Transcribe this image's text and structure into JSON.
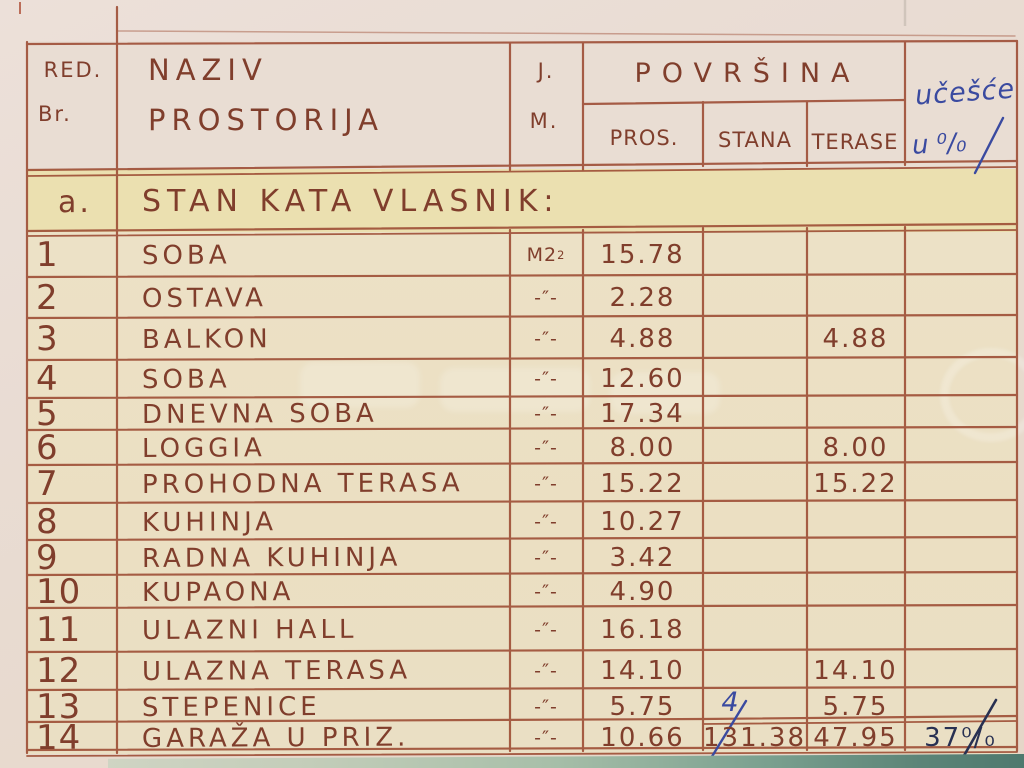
{
  "header": {
    "col1_line1": "RED.",
    "col1_line2": "Br.",
    "col2_line1": "NAZIV",
    "col2_line2": "PROSTORIJA",
    "col3_line1": "J.",
    "col3_line2": "M.",
    "col_group": "POVRŠINA",
    "sub_pros": "PROS.",
    "sub_stana": "STANA",
    "sub_terase": "TERASE",
    "col_share_line1": "učešće",
    "col_share_line2": "u ⁰/₀"
  },
  "section_row": {
    "label": "a.",
    "title": "STAN KATA VLASNIK:"
  },
  "rows": [
    {
      "num": "1",
      "name": "SOBA",
      "jm": "M2",
      "jm_sup": "2",
      "pros": "15.78",
      "stana": "",
      "terase": "",
      "udio": ""
    },
    {
      "num": "2",
      "name": "OSTAVA",
      "jm": "-″-",
      "pros": "2.28",
      "stana": "",
      "terase": "",
      "udio": ""
    },
    {
      "num": "3",
      "name": "BALKON",
      "jm": "-″-",
      "pros": "4.88",
      "stana": "",
      "terase": "4.88",
      "udio": ""
    },
    {
      "num": "4",
      "name": "SOBA",
      "jm": "-″-",
      "pros": "12.60",
      "stana": "",
      "terase": "",
      "udio": ""
    },
    {
      "num": "5",
      "name": "DNEVNA SOBA",
      "jm": "-″-",
      "pros": "17.34",
      "stana": "",
      "terase": "",
      "udio": ""
    },
    {
      "num": "6",
      "name": "LOGGIA",
      "jm": "-″-",
      "pros": "8.00",
      "stana": "",
      "terase": "8.00",
      "udio": ""
    },
    {
      "num": "7",
      "name": "PROHODNA TERASA",
      "jm": "-″-",
      "pros": "15.22",
      "stana": "",
      "terase": "15.22",
      "udio": ""
    },
    {
      "num": "8",
      "name": "KUHINJA",
      "jm": "-″-",
      "pros": "10.27",
      "stana": "",
      "terase": "",
      "udio": ""
    },
    {
      "num": "9",
      "name": "RADNA KUHINJA",
      "jm": "-″-",
      "pros": "3.42",
      "stana": "",
      "terase": "",
      "udio": ""
    },
    {
      "num": "10",
      "name": "KUPAONA",
      "jm": "-″-",
      "pros": "4.90",
      "stana": "",
      "terase": "",
      "udio": ""
    },
    {
      "num": "11",
      "name": "ULAZNI HALL",
      "jm": "-″-",
      "pros": "16.18",
      "stana": "",
      "terase": "",
      "udio": ""
    },
    {
      "num": "12",
      "name": "ULAZNA TERASA",
      "jm": "-″-",
      "pros": "14.10",
      "stana": "",
      "terase": "14.10",
      "udio": ""
    },
    {
      "num": "13",
      "name": "STEPENICE",
      "jm": "-″-",
      "pros": "5.75",
      "stana": "",
      "stana_note": "4",
      "terase": "5.75",
      "udio": ""
    },
    {
      "num": "14",
      "name": "GARAŽA U PRIZ.",
      "jm": "-″-",
      "pros": "10.66",
      "stana": "131.38",
      "terase": "47.95",
      "udio": "37⁰/₀"
    }
  ],
  "colors": {
    "ink_brown": "#803e2c",
    "grid_line": "#9e4e36",
    "ink_blue": "#3a4aa0",
    "ink_darkblue": "#283052",
    "paper": "#e9dcd3",
    "table_paper": "#ece1c8",
    "section_highlight": "#ebe0b0",
    "bottom_strip_green": "#5d8578"
  }
}
